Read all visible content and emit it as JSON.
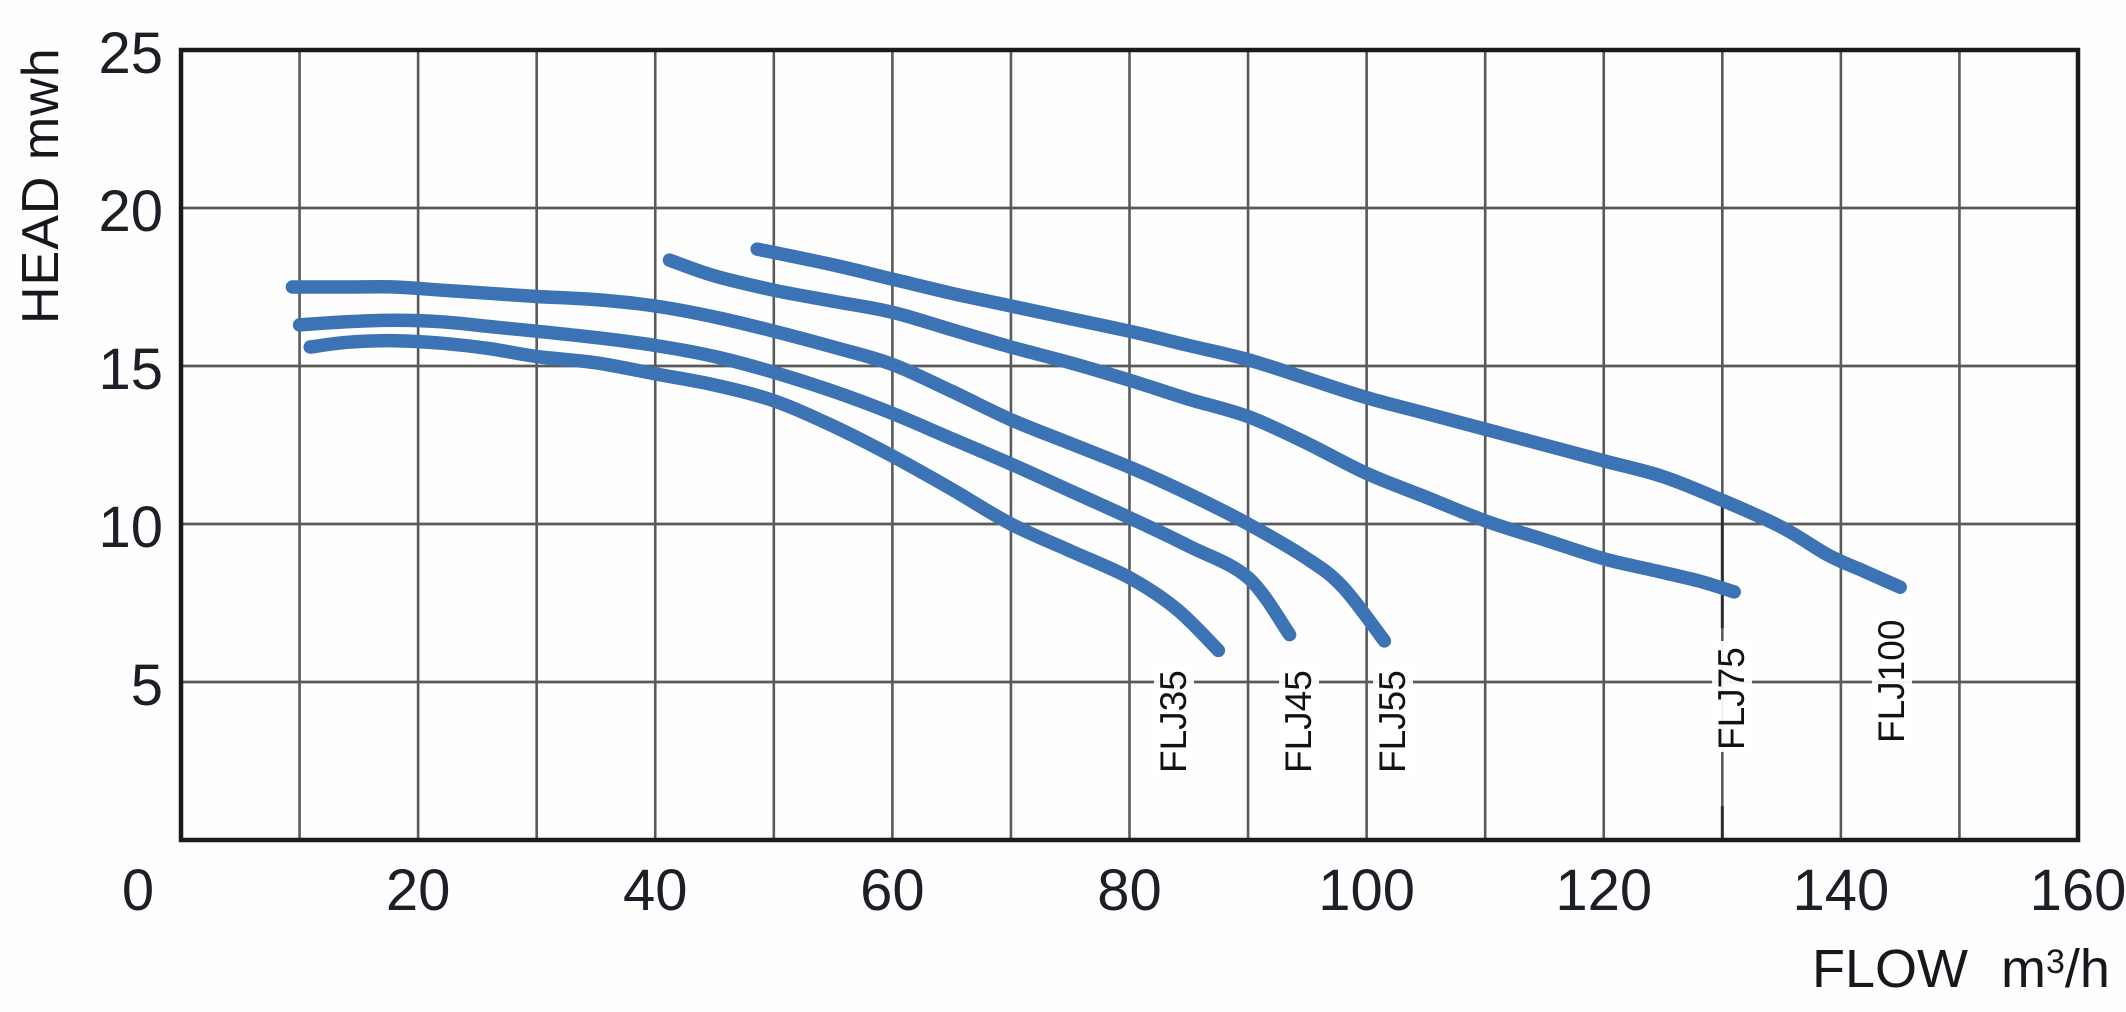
{
  "figure": {
    "ylabel": "HEAD mwh",
    "xlabel_prefix": "FLOW m",
    "xlabel_sup": "3",
    "xlabel_suffix": "/h"
  },
  "colors": {
    "curve": "#3c73b4",
    "grid_line": "#5a5a5a",
    "axis_border": "#1a1a1a",
    "indicator": "#2e2e2e",
    "text": "#1b1f26"
  },
  "chart_data": {
    "type": "line",
    "title": "",
    "xlabel": "FLOW m3/h",
    "ylabel": "HEAD mwh",
    "x_range": [
      0,
      160
    ],
    "y_range": [
      0,
      25
    ],
    "x_ticks": [
      0,
      20,
      40,
      60,
      80,
      100,
      120,
      140,
      160
    ],
    "y_ticks": [
      25,
      20,
      15,
      10,
      5
    ],
    "x_grid_step": 10,
    "y_grid_step": 5,
    "grid": true,
    "legend": "none",
    "units": {
      "x": "m3/h",
      "y": "mwh"
    },
    "series": [
      {
        "name": "FLJ35",
        "label_anchor": [
          83.8,
          2.05
        ],
        "points": [
          [
            10.9,
            15.6
          ],
          [
            14,
            15.75
          ],
          [
            18,
            15.8
          ],
          [
            22,
            15.72
          ],
          [
            26,
            15.55
          ],
          [
            30,
            15.3
          ],
          [
            35,
            15.1
          ],
          [
            40,
            14.75
          ],
          [
            45,
            14.4
          ],
          [
            50,
            13.9
          ],
          [
            55,
            13.1
          ],
          [
            60,
            12.15
          ],
          [
            65,
            11.1
          ],
          [
            70,
            10.0
          ],
          [
            75,
            9.15
          ],
          [
            80,
            8.3
          ],
          [
            84,
            7.3
          ],
          [
            87.5,
            6.0
          ]
        ]
      },
      {
        "name": "FLJ45",
        "label_anchor": [
          94.4,
          2.05
        ],
        "points": [
          [
            10,
            16.3
          ],
          [
            14,
            16.4
          ],
          [
            18,
            16.45
          ],
          [
            22,
            16.4
          ],
          [
            26,
            16.25
          ],
          [
            30,
            16.1
          ],
          [
            35,
            15.9
          ],
          [
            40,
            15.65
          ],
          [
            45,
            15.3
          ],
          [
            50,
            14.8
          ],
          [
            55,
            14.2
          ],
          [
            60,
            13.5
          ],
          [
            65,
            12.7
          ],
          [
            70,
            11.9
          ],
          [
            75,
            11.05
          ],
          [
            80,
            10.2
          ],
          [
            85,
            9.3
          ],
          [
            90,
            8.3
          ],
          [
            93.5,
            6.5
          ]
        ]
      },
      {
        "name": "FLJ55",
        "label_anchor": [
          102.3,
          2.05
        ],
        "points": [
          [
            9.4,
            17.5
          ],
          [
            14,
            17.5
          ],
          [
            18,
            17.5
          ],
          [
            22,
            17.4
          ],
          [
            26,
            17.3
          ],
          [
            30,
            17.2
          ],
          [
            35,
            17.1
          ],
          [
            40,
            16.9
          ],
          [
            45,
            16.55
          ],
          [
            50,
            16.1
          ],
          [
            55,
            15.6
          ],
          [
            60,
            15.05
          ],
          [
            65,
            14.2
          ],
          [
            70,
            13.3
          ],
          [
            75,
            12.55
          ],
          [
            80,
            11.8
          ],
          [
            85,
            10.95
          ],
          [
            90,
            10.0
          ],
          [
            95,
            8.9
          ],
          [
            98,
            8.0
          ],
          [
            101.5,
            6.3
          ]
        ]
      },
      {
        "name": "FLJ75",
        "label_anchor": [
          130.9,
          2.8
        ],
        "points": [
          [
            41.2,
            18.35
          ],
          [
            45,
            17.85
          ],
          [
            50,
            17.4
          ],
          [
            55,
            17.05
          ],
          [
            60,
            16.7
          ],
          [
            65,
            16.15
          ],
          [
            70,
            15.6
          ],
          [
            75,
            15.1
          ],
          [
            80,
            14.55
          ],
          [
            85,
            13.95
          ],
          [
            90,
            13.4
          ],
          [
            95,
            12.55
          ],
          [
            100,
            11.6
          ],
          [
            105,
            10.85
          ],
          [
            110,
            10.1
          ],
          [
            115,
            9.5
          ],
          [
            120,
            8.9
          ],
          [
            124,
            8.55
          ],
          [
            128,
            8.2
          ],
          [
            131,
            7.85
          ]
        ]
      },
      {
        "name": "FLJ100",
        "label_anchor": [
          144.4,
          3.0
        ],
        "points": [
          [
            48.6,
            18.7
          ],
          [
            55,
            18.2
          ],
          [
            60,
            17.75
          ],
          [
            65,
            17.3
          ],
          [
            70,
            16.9
          ],
          [
            75,
            16.5
          ],
          [
            80,
            16.1
          ],
          [
            85,
            15.65
          ],
          [
            90,
            15.2
          ],
          [
            95,
            14.6
          ],
          [
            100,
            14.0
          ],
          [
            105,
            13.5
          ],
          [
            110,
            13.0
          ],
          [
            115,
            12.5
          ],
          [
            120,
            12.0
          ],
          [
            125,
            11.5
          ],
          [
            130,
            10.75
          ],
          [
            135,
            9.9
          ],
          [
            139,
            9.0
          ],
          [
            142,
            8.5
          ],
          [
            145,
            8.0
          ]
        ]
      }
    ],
    "indicator_line": {
      "flow": 130,
      "head_from": 10.75,
      "head_to": 0
    }
  }
}
